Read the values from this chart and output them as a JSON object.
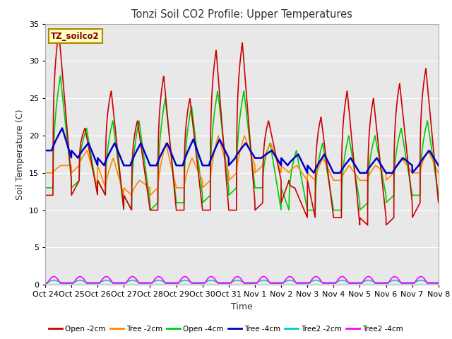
{
  "title": "Tonzi Soil CO2 Profile: Upper Temperatures",
  "xlabel": "Time",
  "ylabel": "Soil Temperature (C)",
  "watermark": "TZ_soilco2",
  "ylim": [
    0,
    35
  ],
  "xlim": [
    0,
    15
  ],
  "plot_bg_color": "#e8e8e8",
  "xtick_labels": [
    "Oct 24",
    "Oct 25",
    "Oct 26",
    "Oct 27",
    "Oct 28",
    "Oct 29",
    "Oct 30",
    "Oct 31",
    "Nov 1",
    "Nov 2",
    "Nov 3",
    "Nov 4",
    "Nov 5",
    "Nov 6",
    "Nov 7",
    "Nov 8"
  ],
  "series": {
    "open_2cm": {
      "color": "#cc0000",
      "label": "Open -2cm",
      "lw": 1.2
    },
    "tree_2cm": {
      "color": "#ff8800",
      "label": "Tree -2cm",
      "lw": 1.2
    },
    "open_4cm": {
      "color": "#00cc00",
      "label": "Open -4cm",
      "lw": 1.2
    },
    "tree_4cm": {
      "color": "#0000cc",
      "label": "Tree -4cm",
      "lw": 1.8
    },
    "tree2_2cm": {
      "color": "#00cccc",
      "label": "Tree2 -2cm",
      "lw": 1.2
    },
    "tree2_4cm": {
      "color": "#ff00ff",
      "label": "Tree2 -4cm",
      "lw": 1.2
    }
  },
  "open2_peaks": [
    34,
    21,
    26,
    22,
    28,
    25,
    31.5,
    32.5,
    22,
    13,
    22.5,
    26,
    25,
    27,
    29,
    31
  ],
  "open2_troughs": [
    12,
    14,
    12,
    10,
    10,
    10,
    10,
    10,
    11,
    14,
    9,
    9,
    8,
    9,
    11,
    11
  ],
  "tree2_peaks": [
    16,
    18,
    17,
    14,
    19,
    17,
    20,
    20,
    19,
    16,
    17,
    16,
    16,
    17,
    18,
    18
  ],
  "tree2_troughs": [
    15,
    16,
    13,
    12,
    13,
    13,
    14,
    15,
    16,
    15,
    14,
    14,
    14,
    15,
    15,
    15
  ],
  "open4_peaks": [
    28,
    21,
    22,
    22,
    25,
    24,
    26,
    26,
    19,
    18,
    19,
    20,
    20,
    21,
    22,
    22
  ],
  "open4_troughs": [
    13,
    14,
    12,
    10,
    11,
    11,
    12,
    13,
    13,
    10,
    10,
    10,
    11,
    12,
    12,
    12
  ],
  "tree4_peaks": [
    21,
    19,
    19,
    19,
    19,
    19.5,
    19.5,
    19,
    18,
    17.5,
    17.5,
    17,
    17,
    17,
    18,
    18
  ],
  "tree4_troughs": [
    18,
    17,
    16,
    16,
    16,
    16,
    16,
    17,
    17,
    16,
    15,
    15,
    15,
    15,
    16,
    16
  ]
}
